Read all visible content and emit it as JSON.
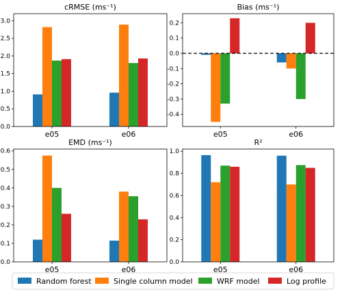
{
  "chart_data": [
    {
      "type": "bar",
      "title": "cRMSE (ms⁻¹)",
      "categories": [
        "e05",
        "e06"
      ],
      "ylim": [
        0,
        3.2
      ],
      "yticks": [
        0.0,
        0.5,
        1.0,
        1.5,
        2.0,
        2.5,
        3.0
      ],
      "tick_decimals": 1,
      "series": [
        {
          "name": "Random forest",
          "values": [
            0.91,
            0.96
          ]
        },
        {
          "name": "Single column model",
          "values": [
            2.82,
            2.89
          ]
        },
        {
          "name": "WRF model",
          "values": [
            1.87,
            1.8
          ]
        },
        {
          "name": "Log profile",
          "values": [
            1.91,
            1.93
          ]
        }
      ]
    },
    {
      "type": "bar",
      "title": "Bias (ms⁻¹)",
      "categories": [
        "e05",
        "e06"
      ],
      "ylim": [
        -0.48,
        0.26
      ],
      "yticks": [
        -0.4,
        -0.3,
        -0.2,
        -0.1,
        0.0,
        0.1,
        0.2
      ],
      "tick_decimals": 1,
      "zero_line": true,
      "series": [
        {
          "name": "Random forest",
          "values": [
            -0.01,
            -0.06
          ]
        },
        {
          "name": "Single column model",
          "values": [
            -0.45,
            -0.1
          ]
        },
        {
          "name": "WRF model",
          "values": [
            -0.33,
            -0.3
          ]
        },
        {
          "name": "Log profile",
          "values": [
            0.23,
            0.2
          ]
        }
      ]
    },
    {
      "type": "bar",
      "title": "EMD (ms⁻¹)",
      "categories": [
        "e05",
        "e06"
      ],
      "ylim": [
        0,
        0.61
      ],
      "yticks": [
        0.0,
        0.1,
        0.2,
        0.3,
        0.4,
        0.5,
        0.6
      ],
      "tick_decimals": 1,
      "series": [
        {
          "name": "Random forest",
          "values": [
            0.12,
            0.115
          ]
        },
        {
          "name": "Single column model",
          "values": [
            0.575,
            0.38
          ]
        },
        {
          "name": "WRF model",
          "values": [
            0.4,
            0.355
          ]
        },
        {
          "name": "Log profile",
          "values": [
            0.26,
            0.23
          ]
        }
      ]
    },
    {
      "type": "bar",
      "title": "R²",
      "categories": [
        "e05",
        "e06"
      ],
      "ylim": [
        0,
        1.02
      ],
      "yticks": [
        0.0,
        0.2,
        0.4,
        0.6,
        0.8,
        1.0
      ],
      "tick_decimals": 1,
      "series": [
        {
          "name": "Random forest",
          "values": [
            0.965,
            0.96
          ]
        },
        {
          "name": "Single column model",
          "values": [
            0.72,
            0.7
          ]
        },
        {
          "name": "WRF model",
          "values": [
            0.87,
            0.875
          ]
        },
        {
          "name": "Log profile",
          "values": [
            0.86,
            0.85
          ]
        }
      ]
    }
  ],
  "legend": {
    "placement": "bottom",
    "items": [
      {
        "name": "Random forest",
        "color": "#1f77b4"
      },
      {
        "name": "Single column model",
        "color": "#ff7f0e"
      },
      {
        "name": "WRF model",
        "color": "#2ca02c"
      },
      {
        "name": "Log profile",
        "color": "#d62728"
      }
    ]
  }
}
